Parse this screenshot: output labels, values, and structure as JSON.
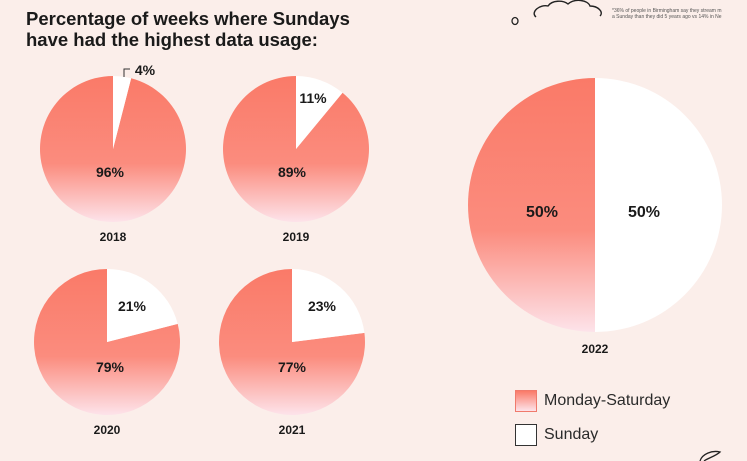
{
  "title": "Percentage of weeks where Sundays\nhave had the highest data usage:",
  "footnote": [
    "*36% of people in Birmingham say they stream m",
    "a Sunday than they did 5 years ago vs 14% in Ne"
  ],
  "colors": {
    "background": "#fbeeea",
    "monday_saturday_top": "#fa7a68",
    "monday_saturday_bottom": "#fde3ea",
    "sunday": "#ffffff",
    "text": "#1a1a1a"
  },
  "chart_data": [
    {
      "type": "pie",
      "title": "2018",
      "labels": [
        "Monday-Saturday",
        "Sunday"
      ],
      "values": [
        96,
        4
      ],
      "value_labels": [
        "96%",
        "4%"
      ]
    },
    {
      "type": "pie",
      "title": "2019",
      "labels": [
        "Monday-Saturday",
        "Sunday"
      ],
      "values": [
        89,
        11
      ],
      "value_labels": [
        "89%",
        "11%"
      ]
    },
    {
      "type": "pie",
      "title": "2020",
      "labels": [
        "Monday-Saturday",
        "Sunday"
      ],
      "values": [
        79,
        21
      ],
      "value_labels": [
        "79%",
        "21%"
      ]
    },
    {
      "type": "pie",
      "title": "2021",
      "labels": [
        "Monday-Saturday",
        "Sunday"
      ],
      "values": [
        77,
        23
      ],
      "value_labels": [
        "77%",
        "23%"
      ]
    },
    {
      "type": "pie",
      "title": "2022",
      "labels": [
        "Monday-Saturday",
        "Sunday"
      ],
      "values": [
        50,
        50
      ],
      "value_labels": [
        "50%",
        "50%"
      ]
    }
  ],
  "legend": {
    "position": "bottom-right",
    "items": [
      {
        "label": "Monday-Saturday",
        "icon": "gradient-swatch"
      },
      {
        "label": "Sunday",
        "icon": "white-swatch"
      }
    ]
  }
}
